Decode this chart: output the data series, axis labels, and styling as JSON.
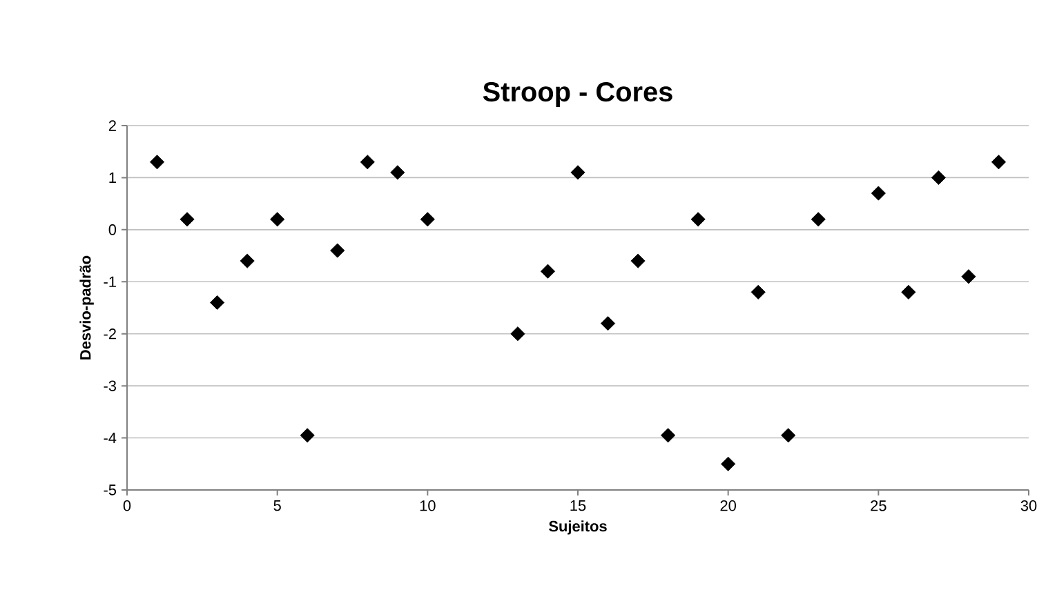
{
  "chart_data": {
    "type": "scatter",
    "title": "Stroop - Cores",
    "xlabel": "Sujeitos",
    "ylabel": "Desvio-padrão",
    "x": [
      1,
      2,
      3,
      4,
      5,
      6,
      7,
      8,
      9,
      10,
      13,
      14,
      15,
      16,
      17,
      18,
      19,
      20,
      21,
      22,
      23,
      25,
      26,
      27,
      28,
      29
    ],
    "series": [
      {
        "color": "#000000",
        "values": [
          1.3,
          0.2,
          -1.4,
          -0.6,
          0.2,
          -3.95,
          -0.4,
          1.3,
          1.1,
          0.2,
          -2.0,
          -0.8,
          1.1,
          -1.8,
          -0.6,
          -3.95,
          0.2,
          -4.5,
          -1.2,
          -3.95,
          0.2,
          0.7,
          -1.2,
          1.0,
          -0.9,
          1.3
        ]
      }
    ],
    "xlim": [
      0,
      30
    ],
    "xticks": [
      0,
      5,
      10,
      15,
      20,
      25,
      30
    ],
    "ylim": [
      -5,
      2
    ],
    "yticks": [
      -5,
      -4,
      -3,
      -2,
      -1,
      0,
      1,
      2
    ],
    "grid": "y",
    "marker": "diamond"
  }
}
